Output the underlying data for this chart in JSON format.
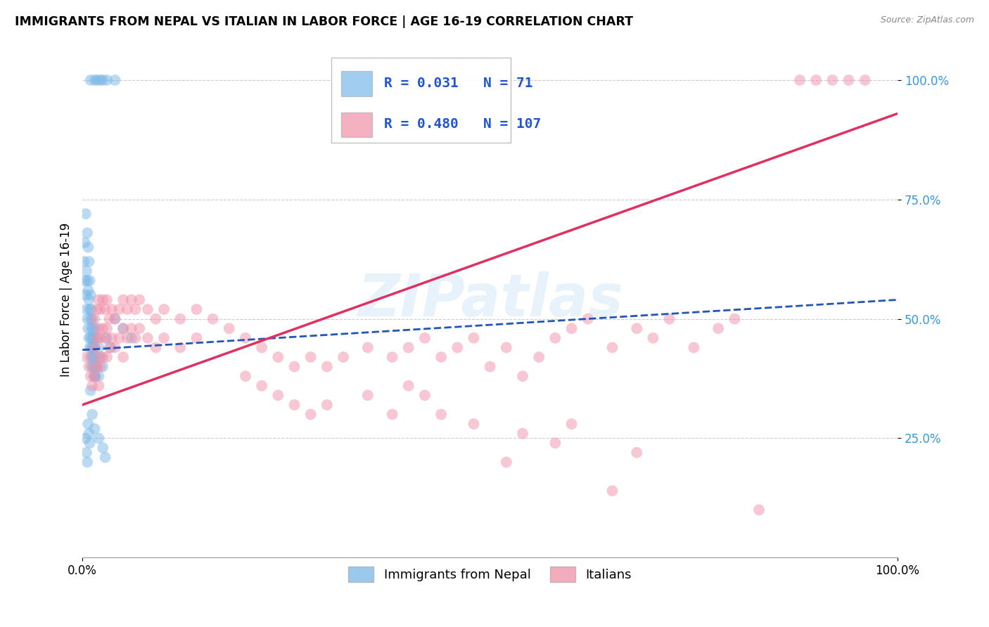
{
  "title": "IMMIGRANTS FROM NEPAL VS ITALIAN IN LABOR FORCE | AGE 16-19 CORRELATION CHART",
  "source": "Source: ZipAtlas.com",
  "ylabel": "In Labor Force | Age 16-19",
  "ytick_values": [
    0.25,
    0.5,
    0.75,
    1.0
  ],
  "xlim": [
    0.0,
    1.0
  ],
  "ylim": [
    0.0,
    1.08
  ],
  "nepal_color": "#7ab8e8",
  "italian_color": "#f090a8",
  "nepal_line_color": "#2255bb",
  "italian_line_color": "#e03060",
  "watermark": "ZIPatlas",
  "nepal_line": [
    [
      0.0,
      0.435
    ],
    [
      1.0,
      0.54
    ]
  ],
  "italian_line": [
    [
      0.0,
      0.32
    ],
    [
      1.0,
      0.93
    ]
  ],
  "nepal_scatter": [
    [
      0.002,
      0.62
    ],
    [
      0.003,
      0.58
    ],
    [
      0.003,
      0.66
    ],
    [
      0.004,
      0.72
    ],
    [
      0.004,
      0.55
    ],
    [
      0.005,
      0.6
    ],
    [
      0.005,
      0.52
    ],
    [
      0.006,
      0.68
    ],
    [
      0.006,
      0.58
    ],
    [
      0.006,
      0.5
    ],
    [
      0.007,
      0.65
    ],
    [
      0.007,
      0.56
    ],
    [
      0.007,
      0.48
    ],
    [
      0.008,
      0.62
    ],
    [
      0.008,
      0.54
    ],
    [
      0.008,
      0.46
    ],
    [
      0.009,
      0.58
    ],
    [
      0.009,
      0.52
    ],
    [
      0.009,
      0.44
    ],
    [
      0.01,
      0.55
    ],
    [
      0.01,
      0.5
    ],
    [
      0.01,
      0.46
    ],
    [
      0.01,
      0.42
    ],
    [
      0.011,
      0.52
    ],
    [
      0.011,
      0.48
    ],
    [
      0.011,
      0.44
    ],
    [
      0.011,
      0.4
    ],
    [
      0.012,
      0.5
    ],
    [
      0.012,
      0.46
    ],
    [
      0.012,
      0.42
    ],
    [
      0.013,
      0.48
    ],
    [
      0.013,
      0.44
    ],
    [
      0.013,
      0.4
    ],
    [
      0.014,
      0.46
    ],
    [
      0.014,
      0.42
    ],
    [
      0.014,
      0.38
    ],
    [
      0.015,
      0.44
    ],
    [
      0.015,
      0.4
    ],
    [
      0.015,
      0.38
    ],
    [
      0.016,
      0.48
    ],
    [
      0.016,
      0.42
    ],
    [
      0.016,
      0.38
    ],
    [
      0.018,
      0.46
    ],
    [
      0.018,
      0.4
    ],
    [
      0.02,
      0.44
    ],
    [
      0.02,
      0.38
    ],
    [
      0.022,
      0.42
    ],
    [
      0.025,
      0.4
    ],
    [
      0.03,
      0.46
    ],
    [
      0.035,
      0.44
    ],
    [
      0.04,
      0.5
    ],
    [
      0.05,
      0.48
    ],
    [
      0.06,
      0.46
    ],
    [
      0.004,
      0.25
    ],
    [
      0.005,
      0.22
    ],
    [
      0.006,
      0.2
    ],
    [
      0.007,
      0.28
    ],
    [
      0.008,
      0.26
    ],
    [
      0.009,
      0.24
    ],
    [
      0.01,
      0.35
    ],
    [
      0.012,
      0.3
    ],
    [
      0.015,
      0.27
    ],
    [
      0.02,
      0.25
    ],
    [
      0.025,
      0.23
    ],
    [
      0.028,
      0.21
    ],
    [
      0.01,
      1.0
    ],
    [
      0.015,
      1.0
    ],
    [
      0.018,
      1.0
    ],
    [
      0.022,
      1.0
    ],
    [
      0.025,
      1.0
    ],
    [
      0.03,
      1.0
    ],
    [
      0.04,
      1.0
    ]
  ],
  "italian_scatter": [
    [
      0.005,
      0.42
    ],
    [
      0.008,
      0.4
    ],
    [
      0.01,
      0.38
    ],
    [
      0.012,
      0.36
    ],
    [
      0.015,
      0.5
    ],
    [
      0.015,
      0.44
    ],
    [
      0.015,
      0.38
    ],
    [
      0.018,
      0.52
    ],
    [
      0.018,
      0.46
    ],
    [
      0.018,
      0.4
    ],
    [
      0.02,
      0.54
    ],
    [
      0.02,
      0.48
    ],
    [
      0.02,
      0.42
    ],
    [
      0.02,
      0.36
    ],
    [
      0.022,
      0.52
    ],
    [
      0.022,
      0.46
    ],
    [
      0.022,
      0.4
    ],
    [
      0.025,
      0.54
    ],
    [
      0.025,
      0.48
    ],
    [
      0.025,
      0.42
    ],
    [
      0.028,
      0.52
    ],
    [
      0.028,
      0.46
    ],
    [
      0.03,
      0.54
    ],
    [
      0.03,
      0.48
    ],
    [
      0.03,
      0.42
    ],
    [
      0.033,
      0.5
    ],
    [
      0.033,
      0.44
    ],
    [
      0.036,
      0.52
    ],
    [
      0.036,
      0.46
    ],
    [
      0.04,
      0.5
    ],
    [
      0.04,
      0.44
    ],
    [
      0.045,
      0.52
    ],
    [
      0.045,
      0.46
    ],
    [
      0.05,
      0.54
    ],
    [
      0.05,
      0.48
    ],
    [
      0.05,
      0.42
    ],
    [
      0.055,
      0.52
    ],
    [
      0.055,
      0.46
    ],
    [
      0.06,
      0.54
    ],
    [
      0.06,
      0.48
    ],
    [
      0.065,
      0.52
    ],
    [
      0.065,
      0.46
    ],
    [
      0.07,
      0.54
    ],
    [
      0.07,
      0.48
    ],
    [
      0.08,
      0.52
    ],
    [
      0.08,
      0.46
    ],
    [
      0.09,
      0.5
    ],
    [
      0.09,
      0.44
    ],
    [
      0.1,
      0.52
    ],
    [
      0.1,
      0.46
    ],
    [
      0.12,
      0.5
    ],
    [
      0.12,
      0.44
    ],
    [
      0.14,
      0.52
    ],
    [
      0.14,
      0.46
    ],
    [
      0.16,
      0.5
    ],
    [
      0.18,
      0.48
    ],
    [
      0.2,
      0.46
    ],
    [
      0.2,
      0.38
    ],
    [
      0.22,
      0.44
    ],
    [
      0.22,
      0.36
    ],
    [
      0.24,
      0.42
    ],
    [
      0.24,
      0.34
    ],
    [
      0.26,
      0.4
    ],
    [
      0.26,
      0.32
    ],
    [
      0.28,
      0.42
    ],
    [
      0.28,
      0.3
    ],
    [
      0.3,
      0.4
    ],
    [
      0.3,
      0.32
    ],
    [
      0.32,
      0.42
    ],
    [
      0.35,
      0.44
    ],
    [
      0.35,
      0.34
    ],
    [
      0.38,
      0.42
    ],
    [
      0.38,
      0.3
    ],
    [
      0.4,
      0.44
    ],
    [
      0.4,
      0.36
    ],
    [
      0.42,
      0.46
    ],
    [
      0.42,
      0.34
    ],
    [
      0.44,
      0.42
    ],
    [
      0.44,
      0.3
    ],
    [
      0.46,
      0.44
    ],
    [
      0.48,
      0.46
    ],
    [
      0.48,
      0.28
    ],
    [
      0.5,
      0.4
    ],
    [
      0.52,
      0.44
    ],
    [
      0.52,
      0.2
    ],
    [
      0.54,
      0.38
    ],
    [
      0.54,
      0.26
    ],
    [
      0.56,
      0.42
    ],
    [
      0.58,
      0.46
    ],
    [
      0.58,
      0.24
    ],
    [
      0.6,
      0.48
    ],
    [
      0.6,
      0.28
    ],
    [
      0.62,
      0.5
    ],
    [
      0.65,
      0.44
    ],
    [
      0.65,
      0.14
    ],
    [
      0.68,
      0.48
    ],
    [
      0.68,
      0.22
    ],
    [
      0.7,
      0.46
    ],
    [
      0.72,
      0.5
    ],
    [
      0.75,
      0.44
    ],
    [
      0.78,
      0.48
    ],
    [
      0.8,
      0.5
    ],
    [
      0.83,
      0.1
    ],
    [
      0.88,
      1.0
    ],
    [
      0.9,
      1.0
    ],
    [
      0.92,
      1.0
    ],
    [
      0.94,
      1.0
    ],
    [
      0.96,
      1.0
    ]
  ]
}
